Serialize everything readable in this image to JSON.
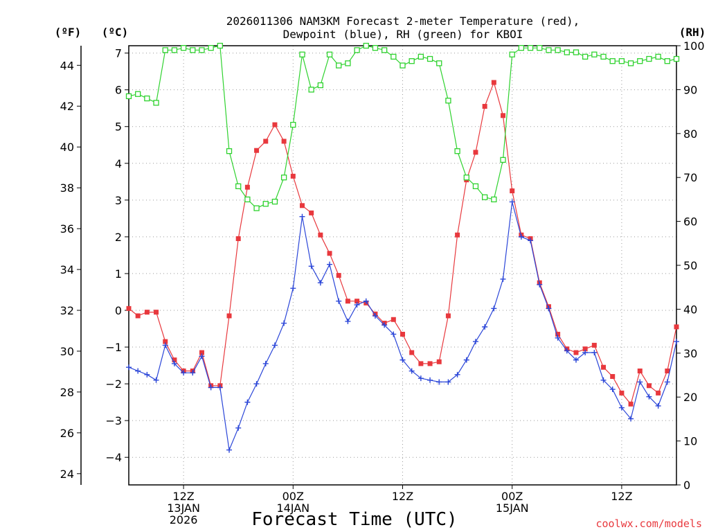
{
  "chart_data": {
    "type": "line",
    "title_line1": "2026011306 NAM3KM Forecast 2-meter Temperature (red),",
    "title_line2": "Dewpoint (blue), RH (green) for KBOI",
    "xlabel": "Forecast Time (UTC)",
    "credit": "coolwx.com/models",
    "units": {
      "fahrenheit": "(ºF)",
      "celsius": "(ºC)",
      "rh": "(RH)"
    },
    "x_range_hours": [
      0,
      60
    ],
    "y_celsius_range": [
      -4.75,
      7.2
    ],
    "y_fahrenheit_ticks": [
      24,
      26,
      28,
      30,
      32,
      34,
      36,
      38,
      40,
      42,
      44
    ],
    "y_celsius_ticks": [
      -4,
      -3,
      -2,
      -1,
      0,
      1,
      2,
      3,
      4,
      5,
      6,
      7
    ],
    "y_rh_range": [
      0,
      100
    ],
    "y_rh_ticks": [
      0,
      10,
      20,
      30,
      40,
      50,
      60,
      70,
      80,
      90,
      100
    ],
    "x_ticks": [
      {
        "hour": 6,
        "lines": [
          "12Z",
          "13JAN",
          "2026"
        ]
      },
      {
        "hour": 18,
        "lines": [
          "00Z",
          "14JAN"
        ]
      },
      {
        "hour": 30,
        "lines": [
          "12Z"
        ]
      },
      {
        "hour": 42,
        "lines": [
          "00Z",
          "15JAN"
        ]
      },
      {
        "hour": 54,
        "lines": [
          "12Z"
        ]
      }
    ],
    "x_hours": [
      0,
      1,
      2,
      3,
      4,
      5,
      6,
      7,
      8,
      9,
      10,
      11,
      12,
      13,
      14,
      15,
      16,
      17,
      18,
      19,
      20,
      21,
      22,
      23,
      24,
      25,
      26,
      27,
      28,
      29,
      30,
      31,
      32,
      33,
      34,
      35,
      36,
      37,
      38,
      39,
      40,
      41,
      42,
      43,
      44,
      45,
      46,
      47,
      48,
      49,
      50,
      51,
      52,
      53,
      54,
      55,
      56,
      57,
      58,
      59,
      60
    ],
    "series": [
      {
        "name": "2-meter Temperature (°C)",
        "color": "#e8383d",
        "marker": "filled-square",
        "values": [
          0.05,
          -0.15,
          -0.05,
          -0.05,
          -0.85,
          -1.35,
          -1.65,
          -1.65,
          -1.15,
          -2.05,
          -2.05,
          -0.15,
          1.95,
          3.35,
          4.35,
          4.6,
          5.05,
          4.6,
          3.65,
          2.85,
          2.65,
          2.05,
          1.55,
          0.95,
          0.25,
          0.25,
          0.2,
          -0.1,
          -0.35,
          -0.25,
          -0.65,
          -1.15,
          -1.45,
          -1.45,
          -1.4,
          -0.15,
          2.05,
          3.55,
          4.3,
          5.55,
          6.2,
          5.3,
          3.25,
          2.05,
          1.95,
          0.75,
          0.1,
          -0.65,
          -1.05,
          -1.15,
          -1.05,
          -0.95,
          -1.55,
          -1.8,
          -2.25,
          -2.55,
          -1.65,
          -2.05,
          -2.25,
          -1.65,
          -0.45
        ]
      },
      {
        "name": "Dewpoint (°C)",
        "color": "#2a45d8",
        "marker": "plus",
        "values": [
          -1.55,
          -1.65,
          -1.75,
          -1.9,
          -0.95,
          -1.45,
          -1.7,
          -1.7,
          -1.25,
          -2.1,
          -2.1,
          -3.8,
          -3.2,
          -2.5,
          -2.0,
          -1.45,
          -0.95,
          -0.35,
          0.6,
          2.55,
          1.2,
          0.75,
          1.25,
          0.25,
          -0.3,
          0.15,
          0.25,
          -0.15,
          -0.4,
          -0.65,
          -1.35,
          -1.65,
          -1.85,
          -1.9,
          -1.95,
          -1.95,
          -1.75,
          -1.35,
          -0.85,
          -0.45,
          0.05,
          0.85,
          2.95,
          2.0,
          1.9,
          0.7,
          0.05,
          -0.75,
          -1.1,
          -1.35,
          -1.15,
          -1.15,
          -1.9,
          -2.15,
          -2.65,
          -2.95,
          -1.95,
          -2.35,
          -2.6,
          -1.95,
          -0.85
        ]
      },
      {
        "name": "RH (%)",
        "color": "#2ed22e",
        "marker": "open-square",
        "values": [
          88.5,
          89,
          88,
          87,
          99,
          99,
          99.5,
          99,
          99,
          99.5,
          100,
          76,
          68,
          65,
          63,
          64,
          64.5,
          70,
          82,
          98,
          90,
          91,
          98,
          95.5,
          96,
          99,
          100,
          99.5,
          99,
          97.5,
          95.5,
          96.5,
          97.5,
          97,
          96,
          87.5,
          76,
          70,
          68,
          65.5,
          65,
          74,
          98,
          99.5,
          99.5,
          99.5,
          99,
          99,
          98.5,
          98.5,
          97.5,
          98,
          97.5,
          96.5,
          96.5,
          96,
          96.5,
          97,
          97.5,
          96.5,
          97
        ]
      }
    ]
  }
}
